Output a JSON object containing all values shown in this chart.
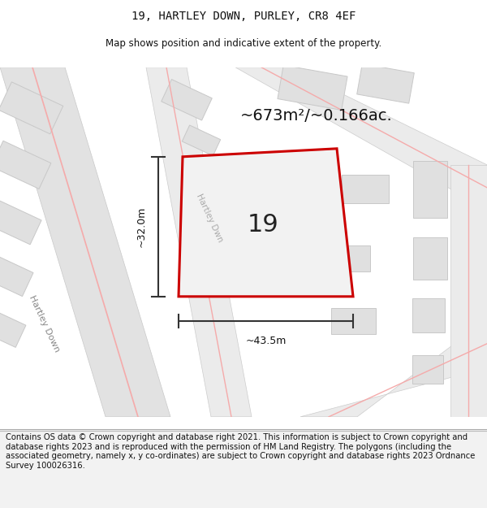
{
  "title": "19, HARTLEY DOWN, PURLEY, CR8 4EF",
  "subtitle": "Map shows position and indicative extent of the property.",
  "footer": "Contains OS data © Crown copyright and database right 2021. This information is subject to Crown copyright and database rights 2023 and is reproduced with the permission of HM Land Registry. The polygons (including the associated geometry, namely x, y co-ordinates) are subject to Crown copyright and database rights 2023 Ordnance Survey 100026316.",
  "area_label": "~673m²/~0.166ac.",
  "width_label": "~43.5m",
  "height_label": "~32.0m",
  "property_number": "19",
  "road_label_1": "Hartley Down",
  "road_label_2": "Hartley Dwn",
  "property_stroke": "#cc0000",
  "property_fill": "#f2f2f2",
  "pink_line_color": "#f5aaaa",
  "road_fill": "#e2e2e2",
  "road_fill2": "#ebebeb",
  "building_fill": "#e0e0e0",
  "building_stroke": "#c8c8c8",
  "dim_line_color": "#333333",
  "title_fontsize": 10,
  "subtitle_fontsize": 8.5,
  "footer_fontsize": 7.2,
  "area_fontsize": 14,
  "number_fontsize": 22
}
